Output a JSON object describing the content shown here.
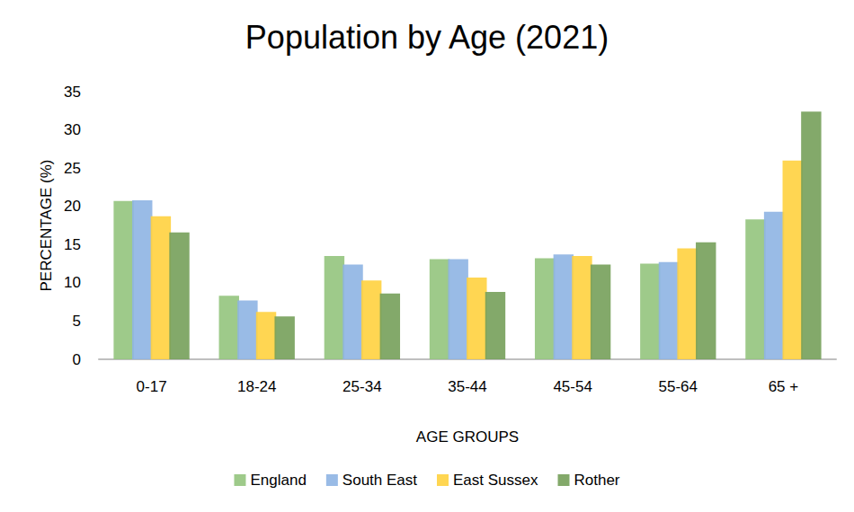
{
  "chart_data": {
    "type": "bar",
    "title": "Population by Age (2021)",
    "x_label": "AGE GROUPS",
    "y_label": "PERCENTAGE (%)",
    "categories": [
      "0-17",
      "18-24",
      "25-34",
      "35-44",
      "45-54",
      "55-64",
      "65 +"
    ],
    "series": [
      {
        "name": "England",
        "color": "#93c47d",
        "values": [
          20.7,
          8.3,
          13.5,
          13.1,
          13.2,
          12.5,
          18.3
        ]
      },
      {
        "name": "South East",
        "color": "#8eb4e3",
        "values": [
          20.8,
          7.7,
          12.4,
          13.1,
          13.7,
          12.7,
          19.3
        ]
      },
      {
        "name": "East Sussex",
        "color": "#ffd23f",
        "values": [
          18.7,
          6.2,
          10.3,
          10.7,
          13.5,
          14.5,
          26.0
        ]
      },
      {
        "name": "Rother",
        "color": "#76a05a",
        "values": [
          16.6,
          5.6,
          8.6,
          8.8,
          12.4,
          15.3,
          32.4
        ]
      }
    ],
    "ylim": [
      0,
      35
    ],
    "yticks": [
      0,
      5,
      10,
      15,
      20,
      25,
      30,
      35
    ],
    "grid": false,
    "legend": "bottom"
  }
}
